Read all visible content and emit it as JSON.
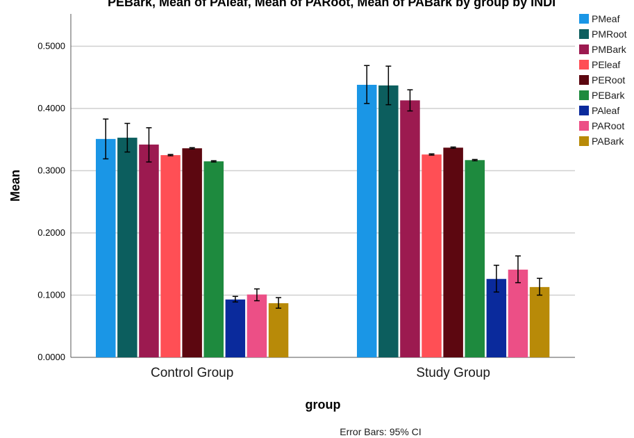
{
  "chart_data": {
    "type": "bar",
    "title": "PEBark, Mean of PAleaf, Mean of PARoot, Mean of PABark by group by INDI",
    "xlabel": "group",
    "ylabel": "Mean",
    "ylim": [
      0,
      0.55
    ],
    "yticks": [
      "0.0000",
      "0.1000",
      "0.2000",
      "0.3000",
      "0.4000",
      "0.5000"
    ],
    "categories": [
      "Control Group",
      "Study Group"
    ],
    "grid": true,
    "legend_position": "top-right",
    "footnote": "Error Bars: 95% CI",
    "series": [
      {
        "name": "PMeaf",
        "color": "#1a96e6",
        "values": [
          0.351,
          0.438
        ],
        "ci": [
          [
            0.319,
            0.383
          ],
          [
            0.408,
            0.469
          ]
        ]
      },
      {
        "name": "PMRoot",
        "color": "#0c5e5e",
        "values": [
          0.353,
          0.437
        ],
        "ci": [
          [
            0.33,
            0.376
          ],
          [
            0.406,
            0.468
          ]
        ]
      },
      {
        "name": "PMBark",
        "color": "#9c1a50",
        "values": [
          0.342,
          0.413
        ],
        "ci": [
          [
            0.314,
            0.369
          ],
          [
            0.396,
            0.43
          ]
        ]
      },
      {
        "name": "PEleaf",
        "color": "#ff4f55",
        "values": [
          0.325,
          0.326
        ],
        "ci": [
          [
            0.324,
            0.326
          ],
          [
            0.325,
            0.327
          ]
        ]
      },
      {
        "name": "PERoot",
        "color": "#5c0710",
        "values": [
          0.336,
          0.337
        ],
        "ci": [
          [
            0.335,
            0.337
          ],
          [
            0.336,
            0.338
          ]
        ]
      },
      {
        "name": "PEBark",
        "color": "#1e8a3e",
        "values": [
          0.315,
          0.317
        ],
        "ci": [
          [
            0.314,
            0.316
          ],
          [
            0.316,
            0.318
          ]
        ]
      },
      {
        "name": "PAleaf",
        "color": "#0a2a9c",
        "values": [
          0.093,
          0.126
        ],
        "ci": [
          [
            0.089,
            0.098
          ],
          [
            0.105,
            0.148
          ]
        ]
      },
      {
        "name": "PARoot",
        "color": "#ec4f86",
        "values": [
          0.101,
          0.141
        ],
        "ci": [
          [
            0.091,
            0.11
          ],
          [
            0.12,
            0.163
          ]
        ]
      },
      {
        "name": "PABark",
        "color": "#b88a08",
        "values": [
          0.087,
          0.113
        ],
        "ci": [
          [
            0.079,
            0.096
          ],
          [
            0.1,
            0.127
          ]
        ]
      }
    ]
  }
}
